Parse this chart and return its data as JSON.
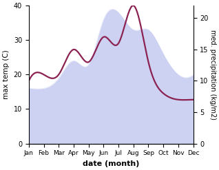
{
  "months": [
    "Jan",
    "Feb",
    "Mar",
    "Apr",
    "May",
    "Jun",
    "Jul",
    "Aug",
    "Sep",
    "Oct",
    "Nov",
    "Dec"
  ],
  "max_temp": [
    16,
    16,
    19,
    24,
    23,
    36,
    38,
    33,
    33,
    26,
    20,
    20
  ],
  "precipitation": [
    10,
    11,
    11,
    15,
    13,
    17,
    16,
    22,
    13,
    8,
    7,
    7
  ],
  "temp_ylim": [
    0,
    40
  ],
  "precip_ylim": [
    0,
    22
  ],
  "fill_color": "#c5caf0",
  "fill_alpha": 0.85,
  "line_color": "#8b2252",
  "line_width": 1.6,
  "xlabel": "date (month)",
  "ylabel_left": "max temp (C)",
  "ylabel_right": "med. precipitation (kg/m2)",
  "left_yticks": [
    0,
    10,
    20,
    30,
    40
  ],
  "right_yticks": [
    0,
    5,
    10,
    15,
    20
  ],
  "background_color": "#ffffff"
}
